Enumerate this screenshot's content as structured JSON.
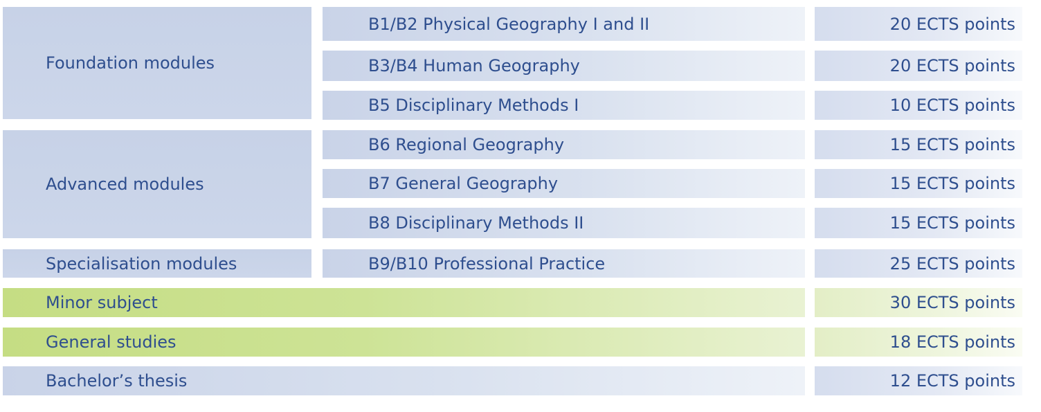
{
  "groups": [
    {
      "label": "Foundation modules"
    },
    {
      "label": "Advanced modules"
    },
    {
      "label": "Specialisation modules"
    }
  ],
  "modules": [
    {
      "label": "B1/B2 Physical Geography I and II",
      "ects": "20 ECTS points"
    },
    {
      "label": "B3/B4 Human Geography",
      "ects": "20 ECTS points"
    },
    {
      "label": "B5 Disciplinary Methods I",
      "ects": "10 ECTS points"
    },
    {
      "label": "B6 Regional Geography",
      "ects": "15 ECTS points"
    },
    {
      "label": "B7 General Geography",
      "ects": "15 ECTS points"
    },
    {
      "label": "B8 Disciplinary Methods II",
      "ects": "15 ECTS points"
    },
    {
      "label": "B9/B10 Professional Practice",
      "ects": "25 ECTS points"
    }
  ],
  "other_rows": [
    {
      "label": "Minor subject",
      "ects": "30 ECTS points"
    },
    {
      "label": "General studies",
      "ects": "18 ECTS points"
    },
    {
      "label": "Bachelor’s thesis",
      "ects": "12 ECTS points"
    }
  ],
  "colors": {
    "text": "#2e4e8e",
    "blue_fill": "#c9d3e8",
    "green_fill": "#c5dd83"
  }
}
